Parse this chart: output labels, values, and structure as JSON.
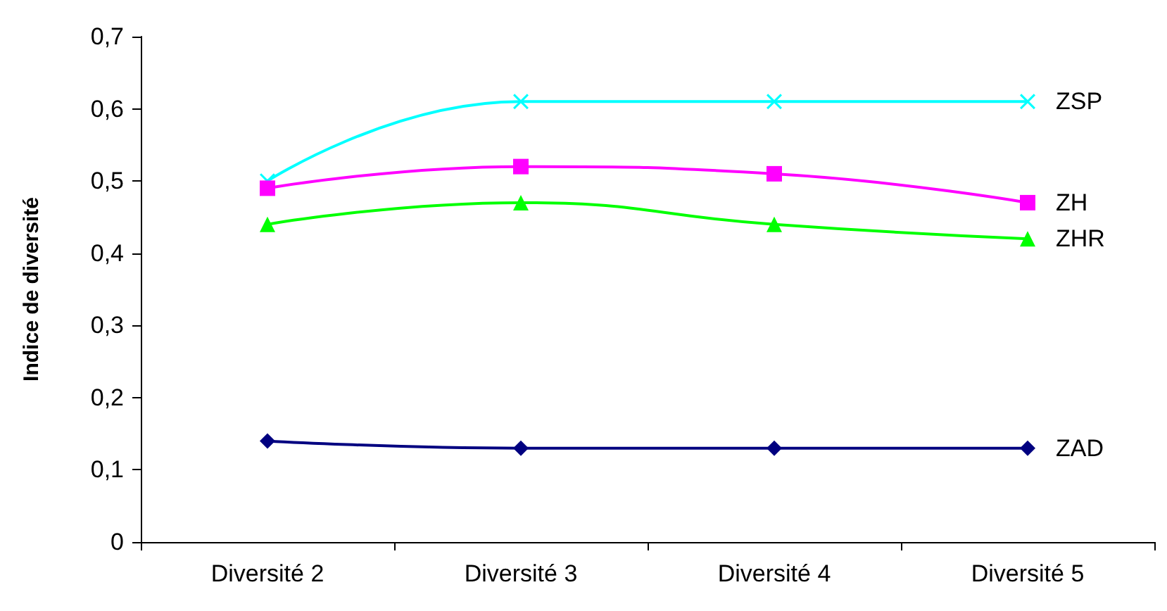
{
  "chart_data": {
    "type": "line",
    "ylabel": "Indice de diversité",
    "categories": [
      "Diversité 2",
      "Diversité 3",
      "Diversité 4",
      "Diversité 5"
    ],
    "series": [
      {
        "name": "ZSP",
        "color": "#00ffff",
        "marker": "cross",
        "values": [
          0.5,
          0.61,
          0.61,
          0.61
        ]
      },
      {
        "name": "ZH",
        "color": "#ff00ff",
        "marker": "square",
        "values": [
          0.49,
          0.52,
          0.51,
          0.47
        ]
      },
      {
        "name": "ZHR",
        "color": "#00ff00",
        "marker": "triangle",
        "values": [
          0.44,
          0.47,
          0.44,
          0.42
        ]
      },
      {
        "name": "ZAD",
        "color": "#000080",
        "marker": "diamond",
        "values": [
          0.14,
          0.13,
          0.13,
          0.13
        ]
      }
    ],
    "ylim": [
      0,
      0.7
    ],
    "yticks": [
      {
        "value": 0,
        "label": "0"
      },
      {
        "value": 0.1,
        "label": "0,1"
      },
      {
        "value": 0.2,
        "label": "0,2"
      },
      {
        "value": 0.3,
        "label": "0,3"
      },
      {
        "value": 0.4,
        "label": "0,4"
      },
      {
        "value": 0.5,
        "label": "0,5"
      },
      {
        "value": 0.6,
        "label": "0,6"
      },
      {
        "value": 0.7,
        "label": "0,7"
      }
    ],
    "grid": false,
    "legend": false
  }
}
